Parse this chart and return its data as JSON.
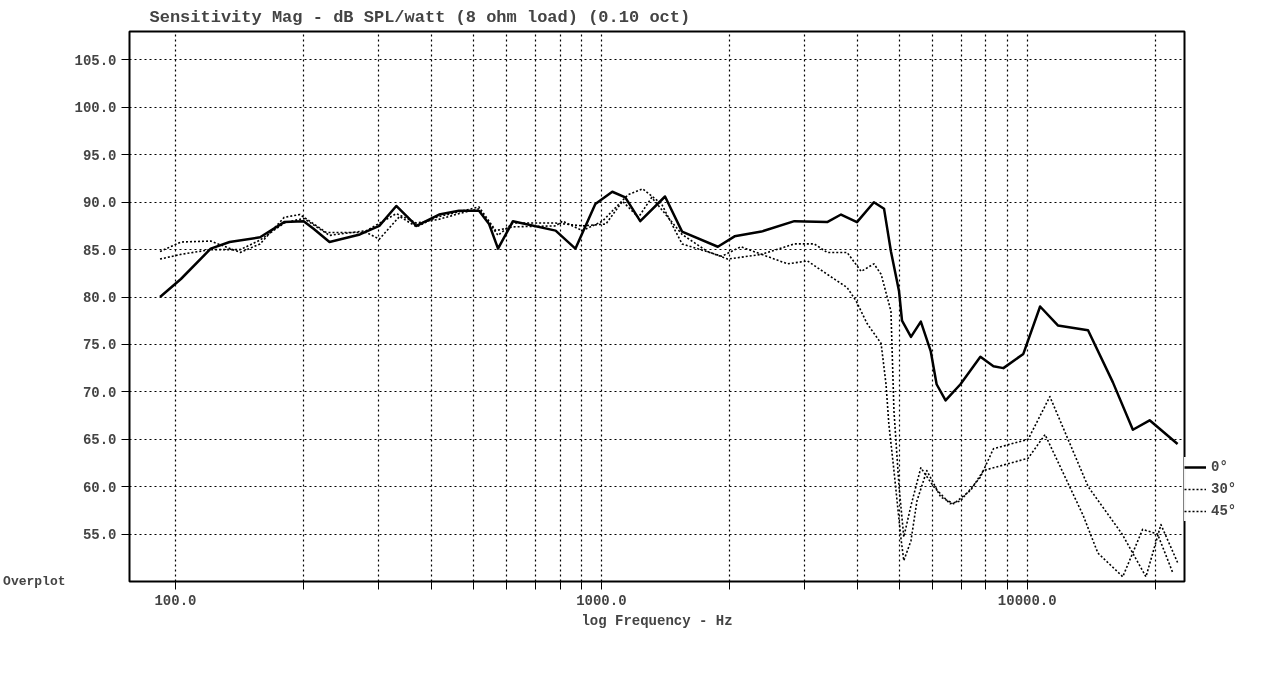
{
  "chart_data": {
    "type": "line",
    "title": "Sensitivity Mag - dB SPL/watt (8 ohm load) (0.10 oct)",
    "xlabel": "log Frequency - Hz",
    "annotations": [
      "Overplot"
    ],
    "log": "x",
    "grid": true,
    "legend": "right",
    "xlim": [
      78,
      23400
    ],
    "ylim": [
      50,
      108
    ],
    "xticks": [
      {
        "value": 100,
        "label": "100.0"
      },
      {
        "value": 200,
        "label": null
      },
      {
        "value": 300,
        "label": null
      },
      {
        "value": 400,
        "label": null
      },
      {
        "value": 500,
        "label": null
      },
      {
        "value": 600,
        "label": null
      },
      {
        "value": 700,
        "label": null
      },
      {
        "value": 800,
        "label": null
      },
      {
        "value": 900,
        "label": null
      },
      {
        "value": 1000,
        "label": "1000.0"
      },
      {
        "value": 2000,
        "label": null
      },
      {
        "value": 3000,
        "label": null
      },
      {
        "value": 4000,
        "label": null
      },
      {
        "value": 5000,
        "label": null
      },
      {
        "value": 6000,
        "label": null
      },
      {
        "value": 7000,
        "label": null
      },
      {
        "value": 8000,
        "label": null
      },
      {
        "value": 9000,
        "label": null
      },
      {
        "value": 10000,
        "label": "10000.0"
      },
      {
        "value": 20000,
        "label": null
      }
    ],
    "yticks": [
      {
        "value": 55,
        "label": "55.0"
      },
      {
        "value": 60,
        "label": "60.0"
      },
      {
        "value": 65,
        "label": "65.0"
      },
      {
        "value": 70,
        "label": "70.0"
      },
      {
        "value": 75,
        "label": "75.0"
      },
      {
        "value": 80,
        "label": "80.0"
      },
      {
        "value": 85,
        "label": "85.0"
      },
      {
        "value": 90,
        "label": "90.0"
      },
      {
        "value": 95,
        "label": "95.0"
      },
      {
        "value": 100,
        "label": "100.0"
      },
      {
        "value": 105,
        "label": "105.0"
      }
    ],
    "series": [
      {
        "name": "0°",
        "color": "#000000",
        "line_style": "solid",
        "x": [
          92,
          103,
          121,
          134,
          158,
          180,
          200,
          211,
          230,
          271,
          301,
          330,
          368,
          416,
          463,
          516,
          545,
          572,
          620,
          781,
          869,
          968,
          1061,
          1138,
          1234,
          1411,
          1547,
          1877,
          2055,
          2377,
          2839,
          3390,
          3654,
          3983,
          4365,
          4611,
          4786,
          5000,
          5081,
          5333,
          5625,
          5933,
          6126,
          6430,
          6969,
          7762,
          8330,
          8790,
          9790,
          10720,
          11800,
          13890,
          15890,
          17700,
          19380,
          22540
        ],
        "values": [
          80.0,
          81.9,
          85.1,
          85.8,
          86.3,
          87.9,
          88.0,
          87.2,
          85.8,
          86.6,
          87.5,
          89.6,
          87.5,
          88.7,
          89.1,
          89.1,
          87.7,
          85.1,
          88.0,
          87.0,
          85.1,
          89.8,
          91.1,
          90.5,
          88.0,
          90.6,
          86.9,
          85.3,
          86.4,
          86.9,
          88.0,
          87.9,
          88.7,
          87.9,
          90.0,
          89.3,
          84.8,
          80.6,
          77.5,
          75.8,
          77.4,
          74.3,
          70.8,
          69.1,
          70.8,
          73.7,
          72.7,
          72.5,
          74.0,
          79.0,
          77.0,
          76.5,
          71.0,
          66.0,
          67.0,
          64.5
        ]
      },
      {
        "name": "30°",
        "color": "#000000",
        "line_style": "dotted",
        "x": [
          92,
          103,
          121,
          142,
          158,
          180,
          196,
          226,
          281,
          301,
          336,
          368,
          409,
          464,
          516,
          565,
          620,
          781,
          811,
          902,
          1006,
          1156,
          1250,
          1385,
          1547,
          1918,
          2125,
          2377,
          2839,
          3162,
          3390,
          3776,
          4074,
          4365,
          4538,
          4786,
          4864,
          5000,
          5130,
          5333,
          5625,
          6030,
          6590,
          6970,
          7760,
          8330,
          10050,
          11300,
          13900,
          16700,
          19000,
          20600,
          22540
        ],
        "values": [
          84.8,
          85.8,
          85.9,
          84.7,
          85.6,
          88.4,
          88.7,
          86.8,
          86.8,
          86.1,
          88.5,
          87.4,
          88.4,
          89.0,
          89.5,
          87.0,
          87.4,
          87.5,
          88.0,
          87.0,
          88.0,
          90.8,
          91.4,
          89.8,
          85.6,
          84.3,
          85.3,
          84.5,
          85.6,
          85.6,
          84.7,
          84.7,
          82.7,
          83.5,
          82.4,
          78.5,
          68.0,
          60.0,
          54.7,
          58.0,
          62.0,
          60.0,
          58.2,
          58.5,
          61.0,
          64.0,
          65.0,
          69.5,
          60.0,
          55.0,
          50.5,
          56.0,
          52.0
        ]
      },
      {
        "name": "45°",
        "color": "#000000",
        "line_style": "dotted",
        "x": [
          92,
          103,
          121,
          142,
          158,
          180,
          200,
          230,
          281,
          330,
          368,
          416,
          464,
          516,
          572,
          620,
          781,
          902,
          1025,
          1121,
          1222,
          1313,
          1547,
          1775,
          1981,
          2377,
          2737,
          3048,
          3390,
          3776,
          3963,
          4207,
          4538,
          4660,
          4732,
          4864,
          5047,
          5130,
          5333,
          5508,
          5810,
          6266,
          6720,
          7360,
          7890,
          10050,
          11010,
          13520,
          14650,
          16760,
          18660,
          20230,
          21930
        ],
        "values": [
          84.0,
          84.5,
          85.0,
          85.0,
          86.0,
          87.8,
          88.3,
          86.5,
          87.0,
          88.8,
          87.8,
          88.2,
          88.8,
          89.3,
          86.5,
          87.8,
          87.8,
          87.5,
          87.7,
          90.1,
          88.4,
          90.5,
          86.6,
          84.8,
          84.0,
          84.5,
          83.5,
          83.8,
          82.4,
          81.0,
          79.6,
          77.2,
          75.1,
          70.8,
          66.6,
          61.7,
          54.7,
          52.2,
          54.3,
          58.5,
          61.7,
          58.9,
          58.2,
          59.6,
          61.7,
          63.0,
          65.5,
          57.0,
          53.0,
          50.5,
          55.5,
          55.0,
          51.0
        ]
      }
    ]
  }
}
